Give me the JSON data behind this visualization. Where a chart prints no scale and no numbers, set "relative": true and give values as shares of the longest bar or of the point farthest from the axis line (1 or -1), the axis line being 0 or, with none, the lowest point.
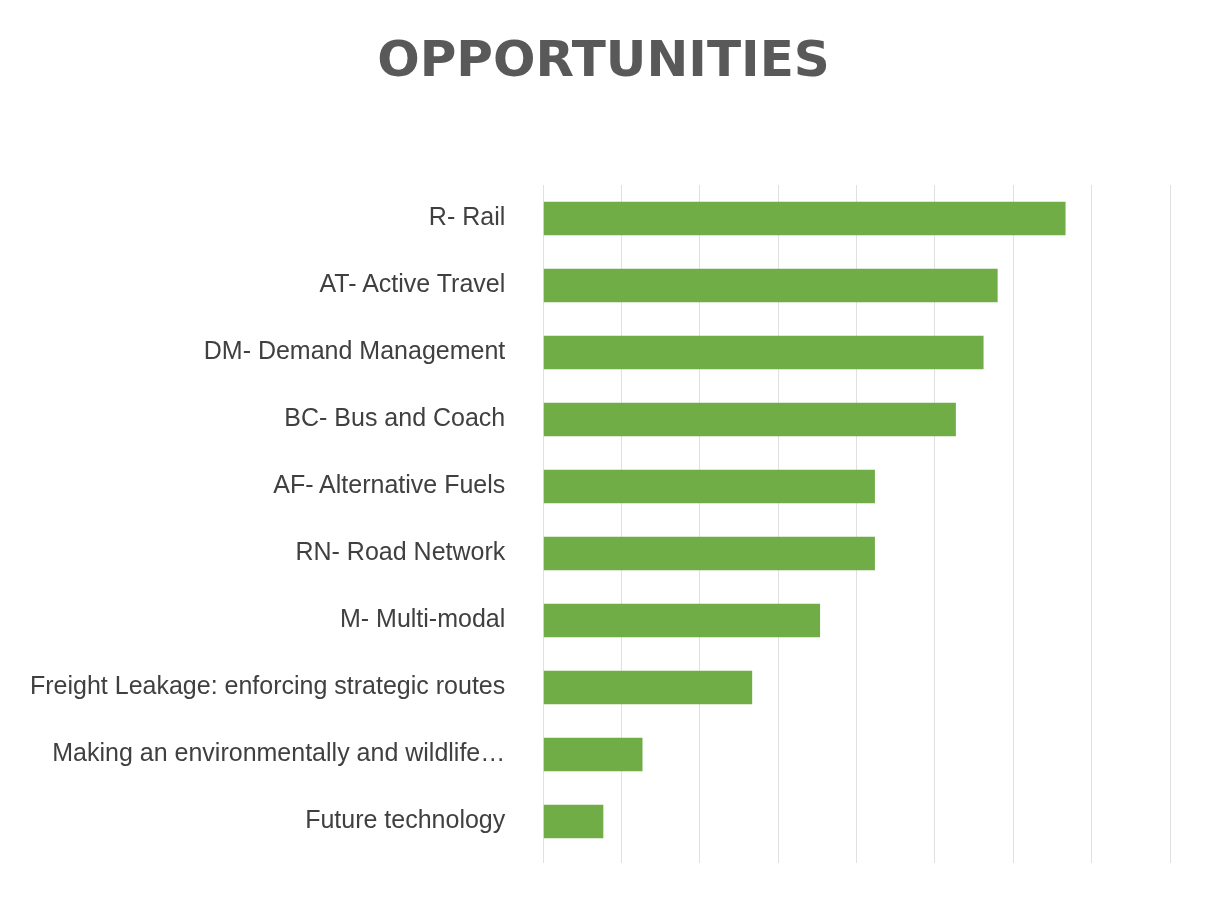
{
  "chart_data": {
    "type": "bar",
    "title": "OPPORTUNITIES",
    "orientation": "horizontal",
    "relative": true,
    "grid": "x",
    "legend": false,
    "categories": [
      "R- Rail",
      "AT- Active Travel",
      "DM- Demand Management",
      "BC- Bus and Coach",
      "AF- Alternative Fuels",
      "RN- Road Network",
      "M- Multi-modal",
      "Freight Leakage: enforcing strategic routes",
      "Making an environmentally and wildlife…",
      "Future technology"
    ],
    "values": [
      1,
      0.87,
      0.843,
      0.79,
      0.635,
      0.635,
      0.53,
      0.4,
      0.19,
      0.115
    ],
    "color": "#70ad47"
  }
}
